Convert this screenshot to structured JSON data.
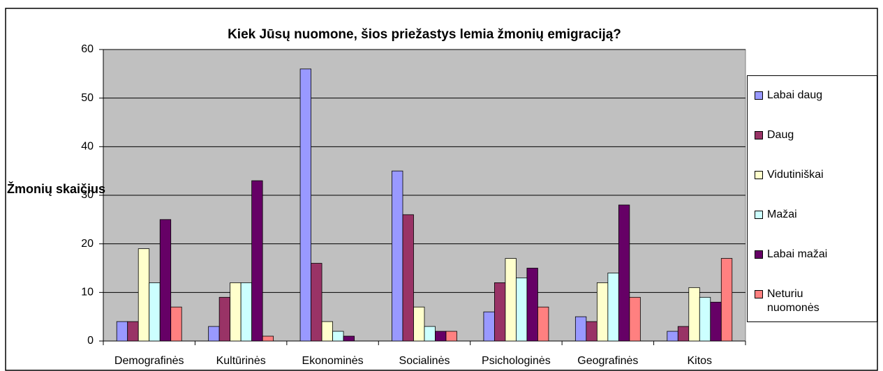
{
  "chart_data": {
    "type": "bar",
    "title": "Kiek Jūsų nuomone, šios priežastys lemia žmonių emigraciją?",
    "ylabel": "Žmonių skaičius",
    "categories": [
      "Demografinės",
      "Kultūrinės",
      "Ekonominės",
      "Socialinės",
      "Psichologinės",
      "Geografinės",
      "Kitos"
    ],
    "series": [
      {
        "name": "Labai daug",
        "color": "#9999ff",
        "values": [
          4,
          3,
          56,
          35,
          6,
          5,
          2
        ]
      },
      {
        "name": "Daug",
        "color": "#993366",
        "values": [
          4,
          9,
          16,
          26,
          12,
          4,
          3
        ]
      },
      {
        "name": "Vidutiniškai",
        "color": "#ffffcc",
        "values": [
          19,
          12,
          4,
          7,
          17,
          12,
          11
        ]
      },
      {
        "name": "Mažai",
        "color": "#ccffff",
        "values": [
          12,
          12,
          2,
          3,
          13,
          14,
          9
        ]
      },
      {
        "name": "Labai mažai",
        "color": "#660066",
        "values": [
          25,
          33,
          1,
          2,
          15,
          28,
          8
        ]
      },
      {
        "name": "Neturiu nuomonės",
        "color": "#ff8080",
        "values": [
          7,
          1,
          0,
          2,
          7,
          9,
          17
        ]
      }
    ],
    "ylim": [
      0,
      60
    ],
    "yticks": [
      0,
      10,
      20,
      30,
      40,
      50,
      60
    ],
    "grid": true,
    "legend": "right"
  }
}
